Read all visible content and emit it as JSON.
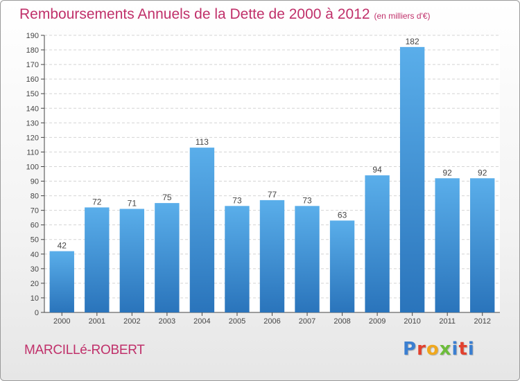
{
  "header": {
    "title": "Remboursements Annuels de la Dette de 2000 à 2012",
    "unit": "(en milliers d'€)"
  },
  "footer": {
    "city": "MARCILLé-ROBERT",
    "logo": "Proxiti"
  },
  "colors": {
    "accent": "#c0306a",
    "bar": "#4a9be0",
    "bar_dark": "#2a74bb"
  },
  "chart_data": {
    "type": "bar",
    "title": "Remboursements Annuels de la Dette de 2000 à 2012",
    "subtitle": "(en milliers d'€)",
    "xlabel": "",
    "ylabel": "",
    "categories": [
      "2000",
      "2001",
      "2002",
      "2003",
      "2004",
      "2005",
      "2006",
      "2007",
      "2008",
      "2009",
      "2010",
      "2011",
      "2012"
    ],
    "values": [
      42,
      72,
      71,
      75,
      113,
      73,
      77,
      73,
      63,
      94,
      182,
      92,
      92
    ],
    "ylim": [
      0,
      190
    ],
    "yticks": [
      0,
      10,
      20,
      30,
      40,
      50,
      60,
      70,
      80,
      90,
      100,
      110,
      120,
      130,
      140,
      150,
      160,
      170,
      180,
      190
    ],
    "grid": true
  }
}
